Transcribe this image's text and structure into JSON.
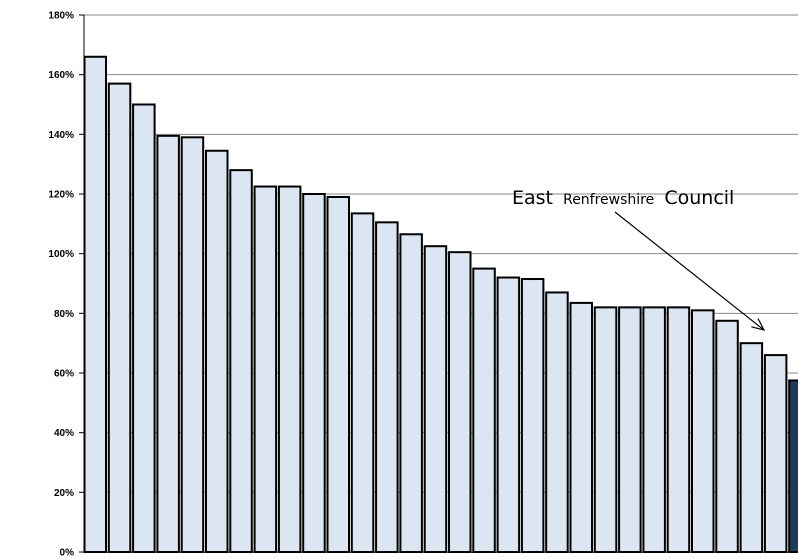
{
  "chart_data": {
    "type": "bar",
    "title": "",
    "xlabel": "",
    "ylabel": "",
    "ylim": [
      0,
      180
    ],
    "yticks": [
      0,
      20,
      40,
      60,
      80,
      100,
      120,
      140,
      160,
      180
    ],
    "ytick_suffix": "%",
    "grid": "horizontal",
    "bar_color": "#dce6f2",
    "highlight_color": "#1f3b5c",
    "values": [
      166,
      157,
      150,
      139.5,
      139,
      134.5,
      128,
      122.5,
      122.5,
      120,
      119,
      113.5,
      110.5,
      106.5,
      102.5,
      100.5,
      95,
      92,
      91.5,
      87,
      83.5,
      82,
      82,
      82,
      82,
      81,
      77.5,
      70,
      66,
      57.5
    ],
    "highlight_index": 29,
    "annotation": {
      "words": [
        {
          "text": "East",
          "size": "big"
        },
        {
          "text": "Renfrewshire",
          "size": "small"
        },
        {
          "text": "Council",
          "size": "big"
        }
      ]
    }
  }
}
